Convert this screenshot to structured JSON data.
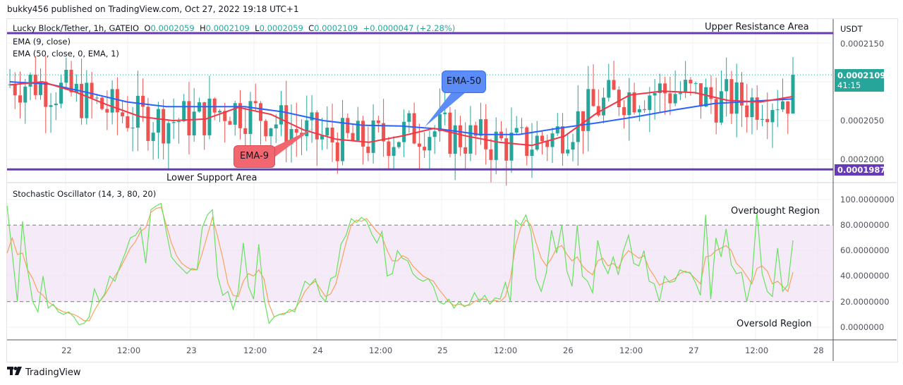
{
  "publisher_line": "bukky456 published on TradingView.com, Oct 27, 2022 19:18 UTC+1",
  "header": {
    "symbol": "Lucky Block/Tether, 1h, GATEIO",
    "o_label": "O",
    "o_value": "0.0002059",
    "h_label": "H",
    "h_value": "0.0002109",
    "l_label": "L",
    "l_value": "0.0002059",
    "c_label": "C",
    "c_value": "0.0002109",
    "change": "+0.0000047 (+2.28%)"
  },
  "indicators": {
    "ema9": "EMA (9, close)",
    "ema50": "EMA (50, close, 0, EMA, 1)",
    "stoch": "Stochastic Oscillator (14, 3, 80, 20)"
  },
  "annotations": {
    "upper": "Upper Resistance Area",
    "lower": "Lower Support Area",
    "ema50_callout": "EMA-50",
    "ema9_callout": "EMA-9",
    "overbought": "Overbought Region",
    "oversold": "Oversold Region"
  },
  "price_axis": {
    "currency": "USDT",
    "ticks": [
      "0.0002150",
      "0.0002050",
      "0.0002000"
    ],
    "current_price": "0.0002109",
    "countdown": "41:15",
    "support_price": "0.0001987"
  },
  "stoch_axis": {
    "ticks": [
      "100.0000000",
      "80.0000000",
      "60.0000000",
      "40.0000000",
      "20.0000000",
      "0.0000000"
    ]
  },
  "time_axis": {
    "ticks": [
      "22",
      "12:00",
      "23",
      "12:00",
      "24",
      "12:00",
      "25",
      "12:00",
      "26",
      "12:00",
      "27",
      "12:00",
      "28"
    ]
  },
  "branding": "TradingView",
  "colors": {
    "up": "#26a69a",
    "down": "#ef5350",
    "ema9": "#f23645",
    "ema50": "#2962ff",
    "level": "#673ab7",
    "stoch_k": "#66e25f",
    "stoch_d": "#f7a35c",
    "band": "#f3e5f5"
  },
  "chart_data": [
    {
      "type": "candlestick",
      "title": "Lucky Block/Tether, 1h, GATEIO",
      "ylabel": "USDT",
      "ylim": [
        0.000197,
        0.000217
      ],
      "x_ticks": [
        "22",
        "12:00",
        "23",
        "12:00",
        "24",
        "12:00",
        "25",
        "12:00",
        "26",
        "12:00",
        "27",
        "12:00",
        "28"
      ],
      "levels": [
        {
          "name": "Upper Resistance Area",
          "value": 0.0002163
        },
        {
          "name": "Lower Support Area",
          "value": 0.0001987
        }
      ],
      "last": {
        "open": 0.0002059,
        "high": 0.0002109,
        "low": 0.0002059,
        "close": 0.0002109,
        "change": 4.7e-06,
        "change_pct": 2.28
      },
      "series": [
        {
          "name": "EMA (9, close)",
          "approx_path": [
            0.0002096,
            0.00021,
            0.0002087,
            0.000207,
            0.0002055,
            0.000205,
            0.0002052,
            0.0002067,
            0.0002058,
            0.0002038,
            0.0002026,
            0.0002022,
            0.000203,
            0.000204,
            0.000203,
            0.0002022,
            0.0002018,
            0.000203,
            0.000206,
            0.0002083,
            0.0002088,
            0.0002086,
            0.0002076,
            0.0002074,
            0.0002081
          ]
        },
        {
          "name": "EMA (50, close, 0, EMA, 1)",
          "approx_path": [
            0.00021,
            0.0002097,
            0.0002086,
            0.0002074,
            0.0002068,
            0.0002068,
            0.0002068,
            0.0002061,
            0.000205,
            0.0002044,
            0.0002043,
            0.0002039,
            0.0002032,
            0.0002032,
            0.000204,
            0.0002047,
            0.0002055,
            0.0002064,
            0.0002072,
            0.0002075,
            0.0002078
          ]
        }
      ]
    },
    {
      "type": "line",
      "title": "Stochastic Oscillator (14, 3, 80, 20)",
      "ylim": [
        0,
        100
      ],
      "bands": {
        "upper": 80,
        "lower": 20
      },
      "series": [
        {
          "name": "%K",
          "approx_values": [
            95,
            58,
            20,
            83,
            45,
            20,
            12,
            40,
            15,
            18,
            12,
            10,
            12,
            8,
            2,
            3,
            8,
            30,
            20,
            26,
            40,
            36,
            48,
            58,
            70,
            72,
            78,
            50,
            92,
            95,
            97,
            75,
            55,
            50,
            46,
            42,
            46,
            45,
            78,
            88,
            92,
            40,
            25,
            28,
            14,
            28,
            66,
            32,
            22,
            65,
            23,
            3,
            8,
            10,
            10,
            14,
            12,
            24,
            36,
            33,
            38,
            25,
            20,
            38,
            40,
            65,
            72,
            85,
            82,
            86,
            83,
            73,
            66,
            75,
            40,
            42,
            60,
            54,
            52,
            42,
            38,
            36,
            38,
            32,
            20,
            18,
            22,
            15,
            20,
            16,
            18,
            27,
            20,
            25,
            18,
            23,
            22,
            35,
            20,
            84,
            80,
            88,
            75,
            38,
            28,
            43,
            76,
            58,
            80,
            44,
            32,
            80,
            40,
            36,
            27,
            68,
            50,
            42,
            55,
            41,
            60,
            72,
            50,
            48,
            60,
            36,
            34,
            20,
            40,
            35,
            36,
            45,
            43,
            43,
            35,
            25,
            88,
            22,
            70,
            55,
            77,
            49,
            42,
            43,
            20,
            38,
            90,
            42,
            28,
            24,
            62,
            28,
            33,
            68
          ]
        },
        {
          "name": "%D",
          "approx_values": [
            58,
            70,
            57,
            58,
            45,
            38,
            28,
            25,
            20,
            17,
            14,
            12,
            11,
            10,
            8,
            5,
            5,
            13,
            20,
            25,
            32,
            40,
            46,
            54,
            62,
            67,
            75,
            78,
            90,
            93,
            94,
            80,
            66,
            56,
            50,
            47,
            45,
            45,
            58,
            72,
            86,
            71,
            54,
            34,
            25,
            24,
            36,
            42,
            40,
            45,
            38,
            18,
            8,
            10,
            11,
            12,
            14,
            20,
            28,
            33,
            36,
            30,
            24,
            26,
            34,
            50,
            66,
            80,
            84,
            83,
            85,
            80,
            75,
            71,
            60,
            52,
            52,
            56,
            54,
            48,
            44,
            40,
            38,
            36,
            30,
            25,
            20,
            17,
            18,
            17,
            17,
            20,
            22,
            22,
            20,
            21,
            20,
            24,
            38,
            64,
            78,
            84,
            80,
            66,
            54,
            48,
            54,
            62,
            64,
            57,
            52,
            55,
            48,
            44,
            41,
            52,
            54,
            48,
            50,
            46,
            55,
            60,
            57,
            54,
            56,
            46,
            40,
            33,
            35,
            36,
            38,
            42,
            44,
            42,
            38,
            34,
            55,
            56,
            60,
            62,
            64,
            60,
            50,
            46,
            40,
            34,
            46,
            48,
            44,
            34,
            36,
            32,
            28,
            43
          ]
        }
      ]
    }
  ]
}
